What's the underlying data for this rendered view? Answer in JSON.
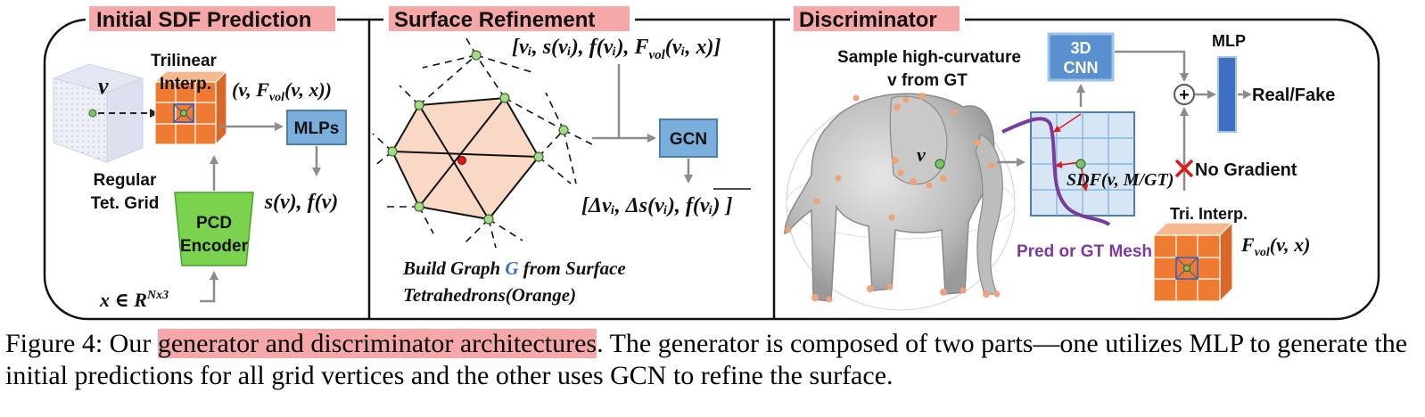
{
  "panels": {
    "initial": {
      "title": "Initial SDF Prediction",
      "grid_label_1": "Regular",
      "grid_label_2": "Tet. Grid",
      "v": "v",
      "trilinear_1": "Trilinear",
      "trilinear_2": "Interp.",
      "vf_tuple": "(v, F",
      "vf_sub": "vol",
      "vf_tuple_end": "(v, x))",
      "mlps": "MLPs",
      "output": "s(v), f(v)",
      "pcd_1": "PCD",
      "pcd_2": "Encoder",
      "input_x": "x ∈ R",
      "input_sup": "Nx3"
    },
    "refine": {
      "title": "Surface Refinement",
      "input_tuple": "[v",
      "input_tuple_full": "[vᵢ, s(vᵢ), f(vᵢ), F",
      "input_sub": "vol",
      "input_end": "(vᵢ, x)]",
      "gcn": "GCN",
      "output_tuple": "[Δvᵢ, Δs(vᵢ), f(vᵢ) ]",
      "build_1a": "Build Graph ",
      "build_g": "G",
      "build_1b": " from Surface",
      "build_2": "Tetrahedrons(Orange)"
    },
    "disc": {
      "title": "Discriminator",
      "sample_1": "Sample high-curvature",
      "sample_2": "v from GT",
      "cnn_1": "3D",
      "cnn_2": "CNN",
      "mlp": "MLP",
      "real_fake": "Real/Fake",
      "no_gradient": "No Gradient",
      "plus": "+",
      "v": "v",
      "sdf": "SDF(v, M/GT)",
      "tri_interp": "Tri. Interp.",
      "fvol": "F",
      "fvol_sub": "vol",
      "fvol_end": "(v, x)",
      "mesh": "Pred or GT Mesh"
    }
  },
  "caption": {
    "prefix": "Figure 4: Our ",
    "highlight": "generator and discriminator architectures",
    "rest": ". The generator is composed of two parts—one utilizes MLP to generate the initial predictions for all grid vertices and the other uses GCN to refine the surface."
  },
  "colors": {
    "title_highlight": "#f6a8a8",
    "box_blue": "#7aaedb",
    "box_blue_border": "#4a7fb5",
    "pcd_green": "#7bd24e",
    "cube_orange": "#ee7b31",
    "hex_fill": "#f9d8c6",
    "mesh_purple": "#7a3aa0",
    "arrow_gray": "#8c8c8c"
  }
}
